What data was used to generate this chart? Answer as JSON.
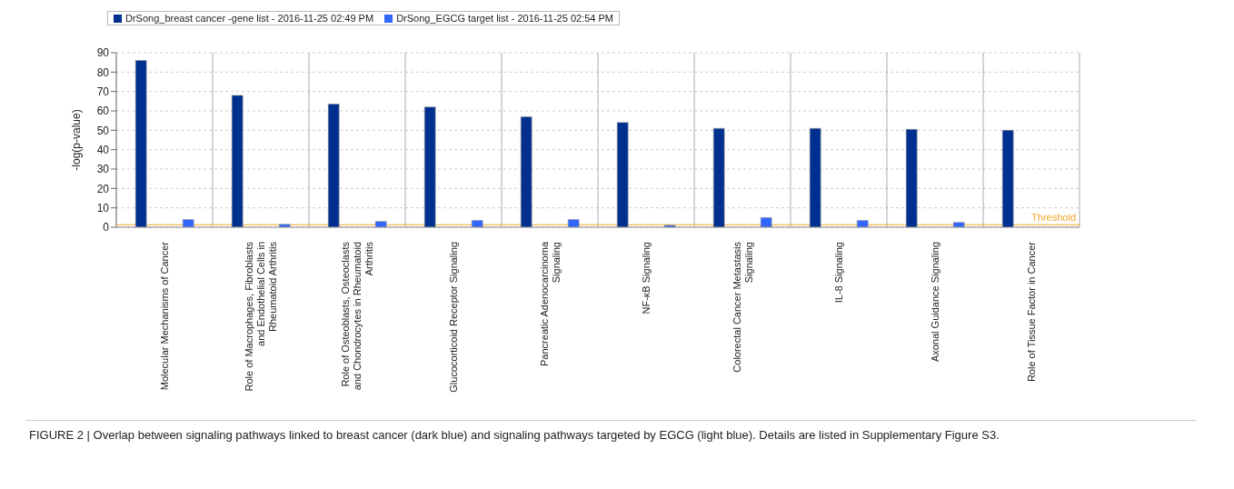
{
  "chart_data": {
    "type": "bar",
    "ylabel": "-log(p-value)",
    "categories": [
      "Molecular Mechanisms of Cancer",
      "Role of Macrophages, Fibroblasts and Endothelial Cells in Rheumatoid Arthritis",
      "Role of Osteoblasts, Osteoclasts and Chondrocytes in Rheumatoid Arthritis",
      "Glucocorticoid Receptor Signaling",
      "Pancreatic Adenocarcinoma Signaling",
      "NF-κB Signaling",
      "Colorectal Cancer Metastasis Signaling",
      "IL-8 Signaling",
      "Axonal Guidance Signaling",
      "Role of Tissue Factor in Cancer"
    ],
    "series": [
      {
        "name": "DrSong_breast cancer -gene list - 2016-11-25 02:49 PM",
        "color": "#00308f",
        "values": [
          86,
          68,
          63.5,
          62,
          57,
          54,
          51,
          51,
          50.5,
          50
        ]
      },
      {
        "name": "DrSong_EGCG target list - 2016-11-25 02:54 PM",
        "color": "#3366ff",
        "values": [
          4,
          1.5,
          3,
          3.5,
          4,
          1,
          5,
          3.5,
          2.5,
          null
        ]
      }
    ],
    "ylim": [
      0,
      90
    ],
    "yticks": [
      0,
      10,
      20,
      30,
      40,
      50,
      60,
      70,
      80,
      90
    ],
    "grid": true,
    "legend": "top left",
    "ref_lines": [
      {
        "axis": "y",
        "value": 1.3,
        "label": "Threshold",
        "color": "#f5a623"
      }
    ],
    "annotations": [
      "FIGURE 2 | Overlap between signaling pathways linked to breast cancer (dark blue) and signaling pathways targeted by EGCG (light blue). Details are listed in Supplementary Figure S3."
    ]
  }
}
